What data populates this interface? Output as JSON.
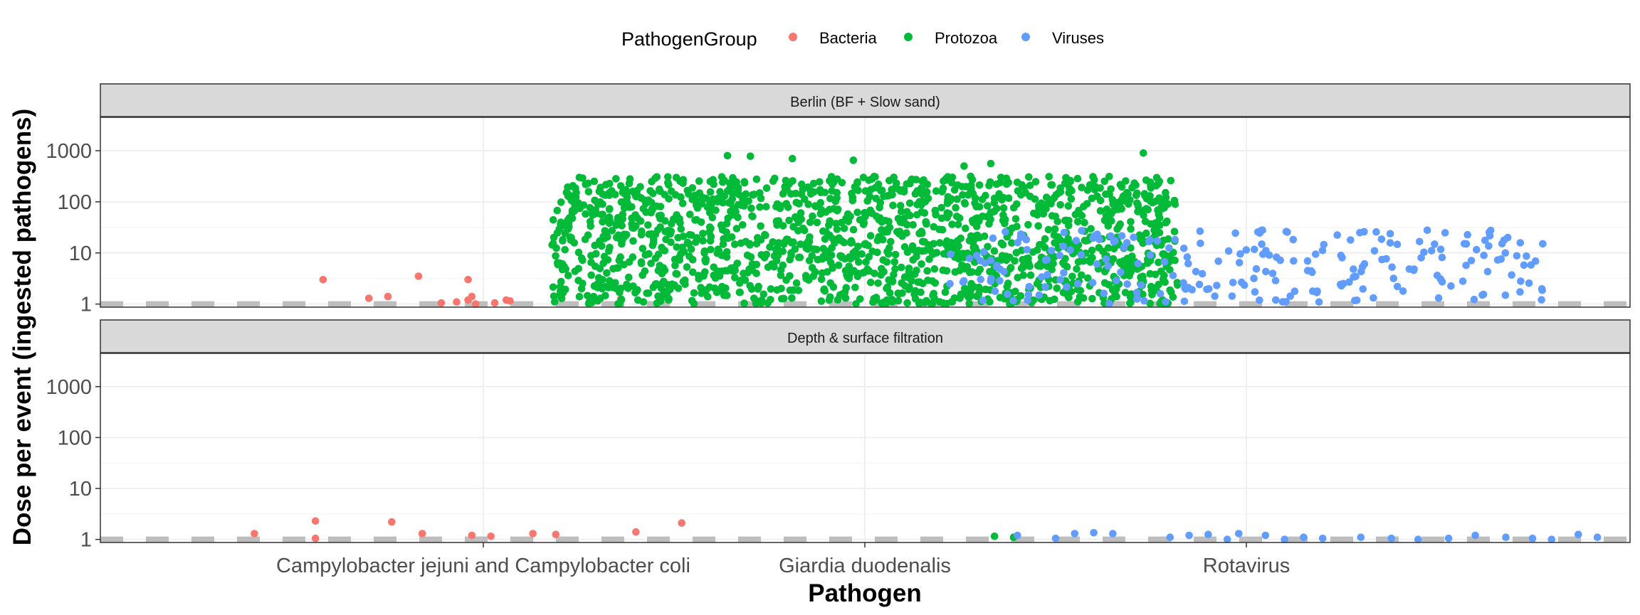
{
  "chart_data": {
    "type": "scatter",
    "title": "",
    "xlabel": "Pathogen",
    "ylabel": "Dose per event (ingested pathogens)",
    "y_scale": "log10",
    "ylim": [
      0.87,
      4500
    ],
    "y_ticks": [
      1,
      10,
      100,
      1000
    ],
    "y_tick_labels": [
      "1",
      "10",
      "100",
      "1000"
    ],
    "categories": [
      "Campylobacter jejuni and Campylobacter coli",
      "Giardia duodenalis",
      "Rotavirus"
    ],
    "reference_line": {
      "y": 1,
      "style": "dashed",
      "color": "#bebebe"
    },
    "grid": true,
    "legend": {
      "title": "PathogenGroup",
      "position": "top",
      "entries": [
        {
          "name": "Bacteria",
          "color": "#F8766D"
        },
        {
          "name": "Protozoa",
          "color": "#00BA38"
        },
        {
          "name": "Viruses",
          "color": "#619CFF"
        }
      ]
    },
    "panels": [
      {
        "label": "Berlin (BF + Slow sand)",
        "series": [
          {
            "name": "Bacteria",
            "category": "Campylobacter jejuni and Campylobacter coli",
            "color": "#F8766D",
            "points": [
              [
                -0.42,
                3.0
              ],
              [
                -0.3,
                1.3
              ],
              [
                -0.25,
                1.4
              ],
              [
                -0.17,
                3.5
              ],
              [
                -0.11,
                1.05
              ],
              [
                -0.07,
                1.1
              ],
              [
                -0.04,
                1.2
              ],
              [
                -0.02,
                1.0
              ],
              [
                -0.03,
                1.4
              ],
              [
                -0.04,
                3.0
              ],
              [
                0.03,
                1.05
              ],
              [
                0.06,
                1.2
              ],
              [
                0.07,
                1.15
              ],
              [
                0.36,
                1.25
              ]
            ]
          },
          {
            "name": "Protozoa",
            "category": "Giardia duodenalis",
            "color": "#00BA38",
            "generated": {
              "count": 1600,
              "x_spread": 0.82,
              "log10_range": [
                0,
                2.5
              ],
              "extra_high_points": [
                [
                  -0.36,
                  800
                ],
                [
                  -0.3,
                  780
                ],
                [
                  -0.19,
                  700
                ],
                [
                  -0.03,
                  650
                ],
                [
                  0.26,
                  500
                ],
                [
                  0.33,
                  560
                ],
                [
                  0.73,
                  900
                ]
              ]
            }
          },
          {
            "name": "Viruses",
            "category": "Rotavirus",
            "color": "#619CFF",
            "generated": {
              "count": 240,
              "x_spread": 0.78,
              "log10_range": [
                0,
                1.45
              ]
            }
          }
        ]
      },
      {
        "label": "Depth & surface filtration",
        "series": [
          {
            "name": "Bacteria",
            "category": "Campylobacter jejuni and Campylobacter coli",
            "color": "#F8766D",
            "points": [
              [
                -0.6,
                1.3
              ],
              [
                -0.44,
                2.3
              ],
              [
                -0.44,
                1.05
              ],
              [
                -0.24,
                2.2
              ],
              [
                -0.16,
                1.3
              ],
              [
                -0.03,
                1.2
              ],
              [
                0.02,
                1.15
              ],
              [
                0.13,
                1.3
              ],
              [
                0.19,
                1.25
              ],
              [
                0.4,
                1.4
              ],
              [
                0.52,
                2.1
              ]
            ]
          },
          {
            "name": "Protozoa",
            "category": "Giardia duodenalis",
            "color": "#00BA38",
            "points": [
              [
                0.34,
                1.15
              ],
              [
                0.39,
                1.1
              ]
            ]
          },
          {
            "name": "Viruses",
            "category": "Rotavirus",
            "color": "#619CFF",
            "points": [
              [
                -0.6,
                1.2
              ],
              [
                -0.5,
                1.05
              ],
              [
                -0.45,
                1.3
              ],
              [
                -0.4,
                1.35
              ],
              [
                -0.35,
                1.3
              ],
              [
                -0.2,
                1.1
              ],
              [
                -0.15,
                1.2
              ],
              [
                -0.1,
                1.25
              ],
              [
                -0.05,
                1.0
              ],
              [
                -0.02,
                1.3
              ],
              [
                0.05,
                1.2
              ],
              [
                0.1,
                1.0
              ],
              [
                0.15,
                1.1
              ],
              [
                0.2,
                1.05
              ],
              [
                0.3,
                1.1
              ],
              [
                0.38,
                1.05
              ],
              [
                0.45,
                1.0
              ],
              [
                0.53,
                1.05
              ],
              [
                0.6,
                1.2
              ],
              [
                0.68,
                1.1
              ],
              [
                0.75,
                1.05
              ],
              [
                0.8,
                1.0
              ],
              [
                0.87,
                1.25
              ],
              [
                0.92,
                1.1
              ]
            ]
          }
        ]
      }
    ]
  }
}
